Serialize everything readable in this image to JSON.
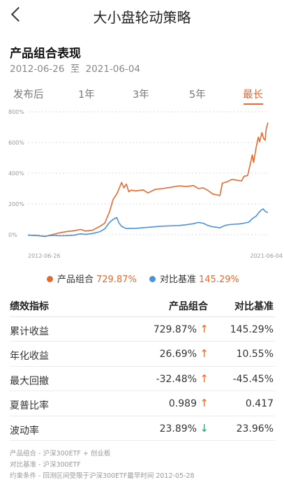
{
  "nav": {
    "title": "大小盘轮动策略"
  },
  "section": {
    "title": "产品组合表现",
    "date_start": "2012-06-26",
    "date_sep": "至",
    "date_end": "2021-06-04"
  },
  "tabs": [
    {
      "label": "发布后",
      "active": false
    },
    {
      "label": "1年",
      "active": false
    },
    {
      "label": "3年",
      "active": false
    },
    {
      "label": "5年",
      "active": false
    },
    {
      "label": "最长",
      "active": true
    }
  ],
  "chart_data": {
    "type": "line",
    "x_start_label": "2012-06-26",
    "x_end_label": "2021-06-04",
    "y_ticks": [
      "800%",
      "600%",
      "400%",
      "200%",
      "0%"
    ],
    "ylim": [
      0,
      800
    ],
    "series": [
      {
        "name": "产品组合",
        "color": "#e8692f",
        "points": [
          [
            0,
            -3
          ],
          [
            0.04,
            -5
          ],
          [
            0.07,
            -12
          ],
          [
            0.1,
            0
          ],
          [
            0.13,
            12
          ],
          [
            0.16,
            20
          ],
          [
            0.19,
            26
          ],
          [
            0.22,
            34
          ],
          [
            0.24,
            24
          ],
          [
            0.27,
            30
          ],
          [
            0.3,
            55
          ],
          [
            0.32,
            75
          ],
          [
            0.34,
            150
          ],
          [
            0.355,
            230
          ],
          [
            0.37,
            265
          ],
          [
            0.38,
            300
          ],
          [
            0.39,
            340
          ],
          [
            0.4,
            305
          ],
          [
            0.41,
            330
          ],
          [
            0.42,
            280
          ],
          [
            0.43,
            290
          ],
          [
            0.45,
            285
          ],
          [
            0.48,
            292
          ],
          [
            0.5,
            272
          ],
          [
            0.53,
            295
          ],
          [
            0.56,
            300
          ],
          [
            0.6,
            310
          ],
          [
            0.63,
            318
          ],
          [
            0.66,
            314
          ],
          [
            0.69,
            320
          ],
          [
            0.71,
            300
          ],
          [
            0.73,
            305
          ],
          [
            0.75,
            288
          ],
          [
            0.77,
            265
          ],
          [
            0.8,
            255
          ],
          [
            0.81,
            335
          ],
          [
            0.83,
            345
          ],
          [
            0.85,
            360
          ],
          [
            0.87,
            355
          ],
          [
            0.89,
            350
          ],
          [
            0.9,
            380
          ],
          [
            0.915,
            385
          ],
          [
            0.925,
            450
          ],
          [
            0.935,
            520
          ],
          [
            0.94,
            470
          ],
          [
            0.95,
            560
          ],
          [
            0.955,
            600
          ],
          [
            0.96,
            635
          ],
          [
            0.965,
            605
          ],
          [
            0.975,
            665
          ],
          [
            0.982,
            625
          ],
          [
            0.988,
            615
          ],
          [
            0.993,
            690
          ],
          [
            1.0,
            730
          ]
        ]
      },
      {
        "name": "对比基准",
        "color": "#4b90e2",
        "points": [
          [
            0,
            -2
          ],
          [
            0.04,
            -6
          ],
          [
            0.07,
            -10
          ],
          [
            0.1,
            -4
          ],
          [
            0.13,
            -7
          ],
          [
            0.16,
            -6
          ],
          [
            0.19,
            -3
          ],
          [
            0.22,
            6
          ],
          [
            0.24,
            2
          ],
          [
            0.27,
            8
          ],
          [
            0.3,
            20
          ],
          [
            0.32,
            38
          ],
          [
            0.34,
            80
          ],
          [
            0.355,
            100
          ],
          [
            0.37,
            112
          ],
          [
            0.38,
            75
          ],
          [
            0.39,
            55
          ],
          [
            0.41,
            40
          ],
          [
            0.45,
            42
          ],
          [
            0.5,
            48
          ],
          [
            0.55,
            55
          ],
          [
            0.6,
            58
          ],
          [
            0.63,
            60
          ],
          [
            0.66,
            65
          ],
          [
            0.69,
            72
          ],
          [
            0.71,
            80
          ],
          [
            0.73,
            75
          ],
          [
            0.75,
            60
          ],
          [
            0.77,
            52
          ],
          [
            0.8,
            45
          ],
          [
            0.82,
            60
          ],
          [
            0.84,
            66
          ],
          [
            0.86,
            68
          ],
          [
            0.88,
            70
          ],
          [
            0.9,
            75
          ],
          [
            0.92,
            82
          ],
          [
            0.935,
            105
          ],
          [
            0.95,
            120
          ],
          [
            0.96,
            140
          ],
          [
            0.97,
            158
          ],
          [
            0.98,
            168
          ],
          [
            0.99,
            150
          ],
          [
            1.0,
            145
          ]
        ]
      }
    ]
  },
  "legend": [
    {
      "label": "产品组合",
      "value": "729.87%",
      "color": "#e8692f"
    },
    {
      "label": "对比基准",
      "value": "145.29%",
      "color": "#4b90e2"
    }
  ],
  "table": {
    "headers": [
      "绩效指标",
      "产品组合",
      "对比基准"
    ],
    "rows": [
      {
        "metric": "累计收益",
        "portfolio": "729.87%",
        "arrow": "↑",
        "dir": "up",
        "benchmark": "145.29%"
      },
      {
        "metric": "年化收益",
        "portfolio": "26.69%",
        "arrow": "↑",
        "dir": "up",
        "benchmark": "10.55%"
      },
      {
        "metric": "最大回撤",
        "portfolio": "-32.48%",
        "arrow": "↑",
        "dir": "up",
        "benchmark": "-45.45%"
      },
      {
        "metric": "夏普比率",
        "portfolio": "0.989",
        "arrow": "↑",
        "dir": "up",
        "benchmark": "0.417"
      },
      {
        "metric": "波动率",
        "portfolio": "23.89%",
        "arrow": "↓",
        "dir": "down",
        "benchmark": "23.96%"
      }
    ]
  },
  "notes": [
    "产品组合 - 沪深300ETF + 创业板",
    "对比基准 - 沪深300ETF",
    "约束条件 - 回测区间受限于沪深300ETF最早时间 2012-05-28"
  ]
}
